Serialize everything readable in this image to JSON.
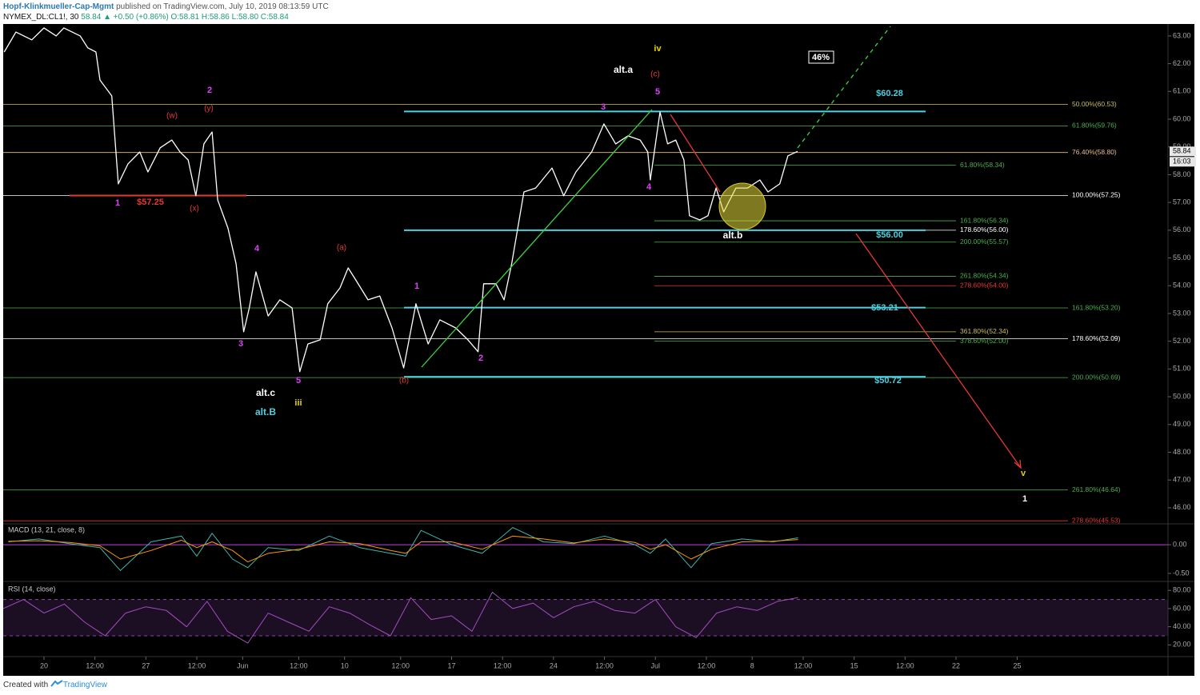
{
  "header": {
    "publisher": "Hopf-Klinkmueller-Cap-Mgmt",
    "published": "published on TradingView.com, July 10, 2019 08:13:59 UTC",
    "symbol": "NYMEX_DL:CL1!, 30",
    "quote": "58.84 ▲ +0.50 (+0.86%) O:58.81 H:58.86 L:58.80 C:58.84"
  },
  "footer": {
    "created_with": "Created with",
    "brand": "TradingView"
  },
  "chart_data": [
    {
      "type": "line",
      "x": [
        -7.8,
        -5.5,
        -2.4,
        0,
        2.4,
        3.9,
        7.1,
        8.6,
        10.2,
        11.0,
        13.3,
        14.6,
        16.5,
        18.8,
        20.4,
        22.8,
        25.1,
        26.7,
        28.3,
        29.8,
        31.4,
        33.0,
        34.1,
        36.1,
        37.7,
        39.2,
        40.3,
        41.6,
        44.0,
        46.3,
        48.7,
        50.2,
        51.8,
        54.2,
        55.7,
        58.1,
        59.7,
        61.2,
        63.6,
        65.9,
        68.3,
        70.6,
        73.0,
        75.4,
        77.7,
        80.8,
        83.2,
        85.2,
        86.3,
        88.7,
        90.3,
        91.8,
        94.2,
        96.5,
        99.7,
        102.0,
        104.4,
        107.5,
        109.9,
        112.2,
        114.6,
        117.0,
        118.5,
        119.0,
        120.9,
        122.4,
        124.0,
        125.6,
        126.7,
        128.7,
        130.3,
        131.9,
        133.4,
        135.8,
        138.1,
        140.5,
        142.1,
        144.4,
        146.0,
        147.9
      ],
      "series": [
        {
          "color": "#ffffff",
          "values": [
            62.42,
            63.14,
            62.86,
            63.29,
            63.0,
            63.29,
            63.0,
            62.57,
            62.42,
            61.41,
            60.84,
            57.67,
            58.39,
            58.82,
            58.1,
            58.97,
            59.25,
            58.82,
            58.53,
            57.24,
            59.11,
            59.54,
            57.09,
            56.08,
            54.79,
            52.34,
            53.2,
            54.5,
            52.91,
            53.49,
            53.2,
            50.9,
            51.9,
            52.05,
            53.35,
            53.92,
            54.64,
            54.21,
            53.49,
            53.63,
            52.48,
            51.04,
            53.35,
            51.9,
            52.77,
            52.48,
            52.05,
            51.62,
            54.07,
            54.07,
            53.49,
            54.79,
            57.38,
            57.52,
            58.24,
            57.24,
            58.1,
            58.82,
            59.83,
            59.11,
            59.4,
            59.25,
            58.82,
            57.81,
            60.26,
            59.11,
            59.25,
            58.53,
            56.52,
            56.37,
            56.52,
            57.52,
            56.66,
            57.52,
            57.52,
            57.81,
            57.38,
            57.67,
            58.68,
            58.84
          ]
        }
      ],
      "xlim": [
        -8,
        220.6
      ],
      "ylim": [
        45.42,
        63.43
      ],
      "xticks": [
        {
          "value": 0,
          "label": "20"
        },
        {
          "value": 10,
          "label": "12:00"
        },
        {
          "value": 20,
          "label": "27"
        },
        {
          "value": 30,
          "label": "12:00"
        },
        {
          "value": 39,
          "label": "Jun"
        },
        {
          "value": 50,
          "label": "12:00"
        },
        {
          "value": 59,
          "label": "10"
        },
        {
          "value": 70,
          "label": "12:00"
        },
        {
          "value": 80,
          "label": "17"
        },
        {
          "value": 90,
          "label": "12:00"
        },
        {
          "value": 100,
          "label": "24"
        },
        {
          "value": 110,
          "label": "12:00"
        },
        {
          "value": 120,
          "label": "Jul"
        },
        {
          "value": 130,
          "label": "12:00"
        },
        {
          "value": 139,
          "label": "8"
        },
        {
          "value": 149,
          "label": "12:00"
        },
        {
          "value": 159,
          "label": "15"
        },
        {
          "value": 169,
          "label": "12:00"
        },
        {
          "value": 179,
          "label": "22"
        },
        {
          "value": 191,
          "label": "25"
        }
      ],
      "yticks": [
        {
          "value": 46,
          "label": "46.00"
        },
        {
          "value": 47,
          "label": "47.00"
        },
        {
          "value": 48,
          "label": "48.00"
        },
        {
          "value": 49,
          "label": "49.00"
        },
        {
          "value": 50,
          "label": "50.00"
        },
        {
          "value": 51,
          "label": "51.00"
        },
        {
          "value": 52,
          "label": "52.00"
        },
        {
          "value": 53,
          "label": "53.00"
        },
        {
          "value": 54,
          "label": "54.00"
        },
        {
          "value": 55,
          "label": "55.00"
        },
        {
          "value": 56,
          "label": "56.00"
        },
        {
          "value": 57,
          "label": "57.00"
        },
        {
          "value": 58,
          "label": "58.00"
        },
        {
          "value": 59,
          "label": "59.00"
        },
        {
          "value": 60,
          "label": "60.00"
        },
        {
          "value": 61,
          "label": "61.00"
        },
        {
          "value": 62,
          "label": "62.00"
        },
        {
          "value": 63,
          "label": "63.00"
        }
      ],
      "levels_long": [
        {
          "value": 60.53,
          "label": "50.00%(60.53)",
          "color": "#cbbd62"
        },
        {
          "value": 59.76,
          "label": "61.80%(59.76)",
          "color": "#4caf50"
        },
        {
          "value": 58.8,
          "label": "76.40%(58.80)",
          "color": "#e6c08a"
        },
        {
          "value": 57.25,
          "label": "100.00%(57.25)",
          "color": "#ffffff"
        },
        {
          "value": 53.2,
          "label": "161.80%(53.20)",
          "color": "#4caf50"
        },
        {
          "value": 52.09,
          "label": "178.60%(52.09)",
          "color": "#ffffff"
        },
        {
          "value": 50.69,
          "label": "200.00%(50.69)",
          "color": "#4caf50"
        },
        {
          "value": 46.64,
          "label": "261.80%(46.64)",
          "color": "#4caf50"
        },
        {
          "value": 45.53,
          "label": "278.60%(45.53)",
          "color": "#e53935"
        }
      ],
      "levels_short": [
        {
          "value": 58.34,
          "label": "61.80%(58.34)",
          "color": "#4caf50"
        },
        {
          "value": 56.34,
          "label": "161.80%(56.34)",
          "color": "#4caf50"
        },
        {
          "value": 56.0,
          "label": "178.60%(56.00)",
          "color": "#ffffff"
        },
        {
          "value": 55.57,
          "label": "200.00%(55.57)",
          "color": "#4caf50"
        },
        {
          "value": 54.34,
          "label": "261.80%(54.34)",
          "color": "#4caf50"
        },
        {
          "value": 54.0,
          "label": "278.60%(54.00)",
          "color": "#e53935"
        },
        {
          "value": 52.34,
          "label": "361.80%(52.34)",
          "color": "#cbbd62"
        },
        {
          "value": 52.0,
          "label": "378.60%(52.00)",
          "color": "#4caf50"
        }
      ],
      "targets": [
        {
          "value": 60.28,
          "label": "$60.28"
        },
        {
          "value": 56.0,
          "label": "$56.00"
        },
        {
          "value": 53.21,
          "label": "$53.21"
        },
        {
          "value": 50.72,
          "label": "$50.72"
        }
      ],
      "target_color": "#4dd0e1",
      "support": {
        "value": 57.25,
        "label": "$57.25",
        "color": "#e53935"
      },
      "annotations": [
        {
          "text": "(w)",
          "color": "#e53935"
        },
        {
          "text": "2",
          "color": "#e040fb"
        },
        {
          "text": "(y)",
          "color": "#e53935"
        },
        {
          "text": "1",
          "color": "#e040fb"
        },
        {
          "text": "(x)",
          "color": "#e53935"
        },
        {
          "text": "4",
          "color": "#e040fb"
        },
        {
          "text": "3",
          "color": "#e040fb"
        },
        {
          "text": "5",
          "color": "#e040fb"
        },
        {
          "text": "alt.c",
          "color": "#ffffff"
        },
        {
          "text": "alt.B",
          "color": "#4dd0e1"
        },
        {
          "text": "iii",
          "color": "#e6d200"
        },
        {
          "text": "(a)",
          "color": "#e53935"
        },
        {
          "text": "1",
          "color": "#e040fb"
        },
        {
          "text": "(b)",
          "color": "#e53935"
        },
        {
          "text": "2",
          "color": "#e040fb"
        },
        {
          "text": "3",
          "color": "#e040fb"
        },
        {
          "text": "alt.a",
          "color": "#ffffff"
        },
        {
          "text": "iv",
          "color": "#e6d200"
        },
        {
          "text": "(c)",
          "color": "#e53935"
        },
        {
          "text": "5",
          "color": "#e040fb"
        },
        {
          "text": "4",
          "color": "#e040fb"
        },
        {
          "text": "alt.b",
          "color": "#ffffff"
        },
        {
          "text": "v",
          "color": "#e6d200"
        },
        {
          "text": "1",
          "color": "#ffffff"
        }
      ],
      "badge": "46%",
      "last_price": 58.84,
      "countdown": "16:03"
    },
    {
      "type": "line",
      "title": "MACD (13, 21, close, 8)",
      "x": [
        -7,
        -1,
        5,
        11,
        15,
        21,
        27,
        30,
        33,
        37,
        40,
        44,
        50,
        56,
        62,
        68,
        71,
        74,
        80,
        86,
        92,
        98,
        104,
        110,
        116,
        119,
        122,
        127,
        131,
        137,
        143,
        148
      ],
      "series": [
        {
          "color": "#3fb8af",
          "values": [
            0.05,
            0.1,
            0.02,
            -0.05,
            -0.45,
            0.05,
            0.15,
            -0.2,
            0.2,
            -0.25,
            -0.4,
            -0.05,
            -0.1,
            0.15,
            -0.05,
            -0.15,
            -0.2,
            0.25,
            0.0,
            -0.15,
            0.3,
            0.05,
            0.02,
            0.15,
            0.0,
            -0.15,
            0.1,
            -0.4,
            0.02,
            0.1,
            0.05,
            0.12
          ]
        },
        {
          "color": "#ff9800",
          "values": [
            0.06,
            0.07,
            0.04,
            -0.02,
            -0.25,
            -0.1,
            0.08,
            -0.05,
            0.05,
            -0.1,
            -0.3,
            -0.15,
            -0.08,
            0.05,
            0.02,
            -0.1,
            -0.15,
            0.05,
            0.05,
            -0.08,
            0.15,
            0.1,
            0.03,
            0.1,
            0.04,
            -0.08,
            0.0,
            -0.25,
            -0.08,
            0.05,
            0.06,
            0.09
          ]
        }
      ],
      "ylim": [
        -0.64,
        0.35
      ],
      "yticks": [
        {
          "value": 0,
          "label": "0.00"
        },
        {
          "value": -0.5,
          "label": "-0.50"
        }
      ],
      "zero_color": "#c040e0"
    },
    {
      "type": "line",
      "title": "RSI (14, close)",
      "x": [
        -8,
        -4,
        0,
        4,
        8,
        12,
        16,
        20,
        24,
        28,
        32,
        36,
        40,
        44,
        48,
        52,
        56,
        60,
        64,
        68,
        72,
        76,
        80,
        84,
        88,
        92,
        96,
        100,
        104,
        108,
        112,
        116,
        120,
        124,
        128,
        132,
        136,
        140,
        144,
        148
      ],
      "series": [
        {
          "color": "#a24ec0",
          "values": [
            60,
            70,
            55,
            65,
            45,
            30,
            55,
            62,
            58,
            40,
            68,
            35,
            22,
            55,
            45,
            35,
            62,
            55,
            42,
            30,
            72,
            48,
            52,
            35,
            78,
            60,
            66,
            50,
            62,
            68,
            58,
            55,
            70,
            40,
            28,
            55,
            62,
            58,
            68,
            72
          ]
        }
      ],
      "ylim": [
        8,
        89
      ],
      "yticks": [
        {
          "value": 80,
          "label": "80.00"
        },
        {
          "value": 60,
          "label": "60.00"
        },
        {
          "value": 40,
          "label": "40.00"
        },
        {
          "value": 20,
          "label": "20.00"
        }
      ],
      "band": [
        30,
        70
      ],
      "band_color": "#8e44ad"
    }
  ]
}
